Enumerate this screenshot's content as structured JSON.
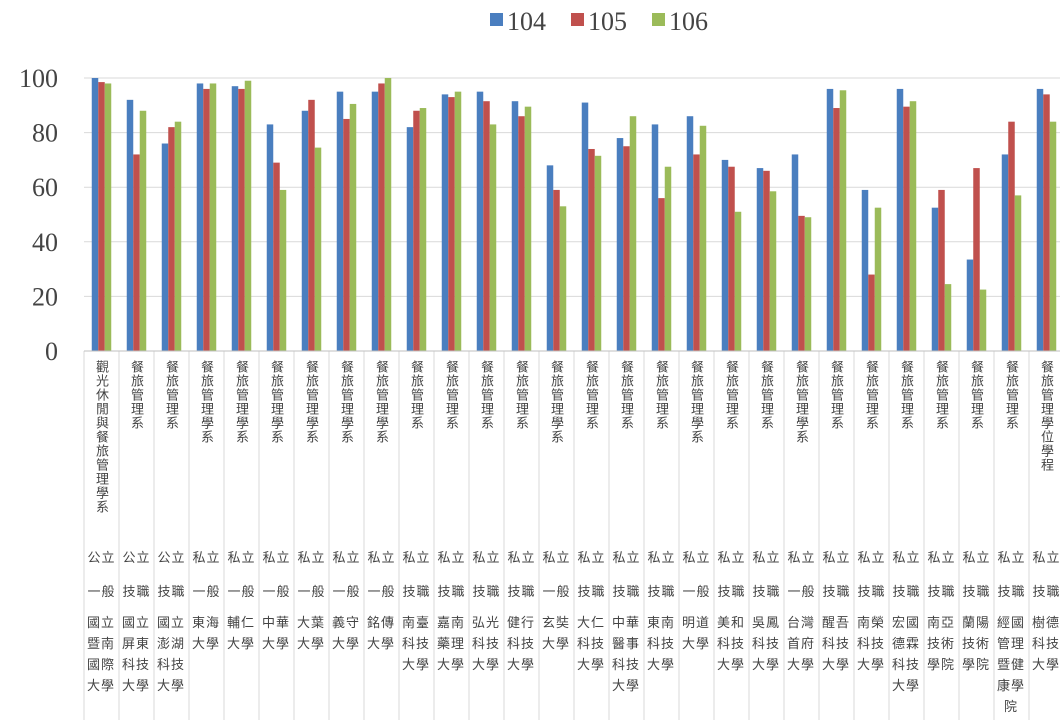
{
  "chart_data": {
    "type": "bar",
    "series": [
      {
        "name": "104",
        "color": "#4a7ebf",
        "values": [
          100,
          92,
          76,
          98,
          97,
          83,
          88,
          95,
          95,
          82,
          94,
          95,
          91.5,
          68,
          91,
          78,
          83,
          86,
          70,
          67,
          72,
          96,
          59,
          96,
          52.5,
          33.5,
          72,
          96
        ]
      },
      {
        "name": "105",
        "color": "#c0504d",
        "values": [
          98.5,
          72,
          82,
          96,
          96,
          69,
          92,
          85,
          98,
          88,
          93,
          91.5,
          86,
          59,
          74,
          75,
          56,
          72,
          67.5,
          66,
          49.5,
          89,
          28,
          89.5,
          59,
          67,
          84,
          94
        ]
      },
      {
        "name": "106",
        "color": "#9bbb59",
        "values": [
          98,
          88,
          84,
          98,
          99,
          59,
          74.5,
          90.5,
          100,
          89,
          95,
          83,
          89.5,
          53,
          71.5,
          86,
          67.5,
          82.5,
          51,
          58.5,
          49,
          95.5,
          52.5,
          91.5,
          24.5,
          22.5,
          57,
          84
        ]
      }
    ],
    "departments": [
      "觀光休閒與餐旅管理學系",
      "餐旅管理系",
      "餐旅管理系",
      "餐旅管理學系",
      "餐旅管理學系",
      "餐旅管理學系",
      "餐旅管理學系",
      "餐旅管理學系",
      "餐旅管理學系",
      "餐旅管理系",
      "餐旅管理系",
      "餐旅管理系",
      "餐旅管理系",
      "餐旅管理學系",
      "餐旅管理系",
      "餐旅管理系",
      "餐旅管理系",
      "餐旅管理學系",
      "餐旅管理系",
      "餐旅管理系",
      "餐旅管理學系",
      "餐旅管理系",
      "餐旅管理系",
      "餐旅管理系",
      "餐旅管理系",
      "餐旅管理系",
      "餐旅管理系",
      "餐旅管理學位學程"
    ],
    "ownership": [
      "公立",
      "公立",
      "公立",
      "私立",
      "私立",
      "私立",
      "私立",
      "私立",
      "私立",
      "私立",
      "私立",
      "私立",
      "私立",
      "私立",
      "私立",
      "私立",
      "私立",
      "私立",
      "私立",
      "私立",
      "私立",
      "私立",
      "私立",
      "私立",
      "私立",
      "私立",
      "私立",
      "私立"
    ],
    "system": [
      "一般",
      "技職",
      "技職",
      "一般",
      "一般",
      "一般",
      "一般",
      "一般",
      "一般",
      "技職",
      "技職",
      "技職",
      "技職",
      "一般",
      "技職",
      "技職",
      "技職",
      "一般",
      "技職",
      "技職",
      "一般",
      "技職",
      "技職",
      "技職",
      "技職",
      "技職",
      "技職",
      "技職"
    ],
    "categories": [
      "國立暨南國際大學",
      "國立屏東科技大學",
      "國立澎湖科技大學",
      "東海大學",
      "輔仁大學",
      "中華大學",
      "大葉大學",
      "義守大學",
      "銘傳大學",
      "南臺科技大學",
      "嘉南藥理大學",
      "弘光科技大學",
      "健行科技大學",
      "玄奘大學",
      "大仁科技大學",
      "中華醫事科技大學",
      "東南科技大學",
      "明道大學",
      "美和科技大學",
      "吳鳳科技大學",
      "台灣首府大學",
      "醒吾科技大學",
      "南榮科技大學",
      "宏國德霖科技大學",
      "南亞技術學院",
      "蘭陽技術學院",
      "經國管理暨健康學院",
      "樹德科技大學"
    ],
    "ylim": [
      0,
      100
    ],
    "yticks": [
      0,
      20,
      40,
      60,
      80,
      100
    ],
    "grid": true,
    "legend": "top"
  }
}
